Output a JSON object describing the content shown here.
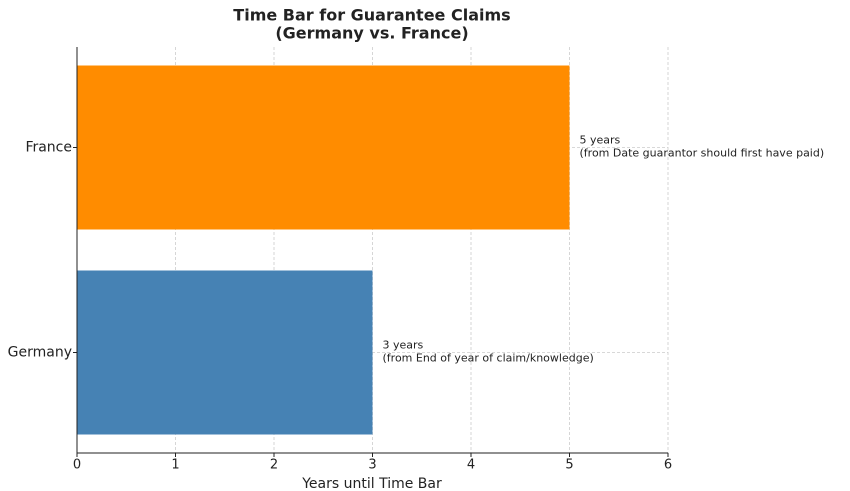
{
  "chart_data": {
    "type": "barh",
    "title": [
      "Time Bar for Guarantee Claims",
      "(Germany vs. France)"
    ],
    "xlabel": "Years until Time Bar",
    "categories": [
      "Germany",
      "France"
    ],
    "values": [
      3,
      5
    ],
    "colors": [
      "#4682b4",
      "#ff8c00"
    ],
    "value_labels": [
      [
        "3 years",
        "(from End of year of claim/knowledge)"
      ],
      [
        "5 years",
        "(from Date guarantor should first have paid)"
      ]
    ],
    "xlim": [
      0,
      6
    ],
    "xticks": [
      0,
      1,
      2,
      3,
      4,
      5,
      6
    ],
    "grid": true
  }
}
